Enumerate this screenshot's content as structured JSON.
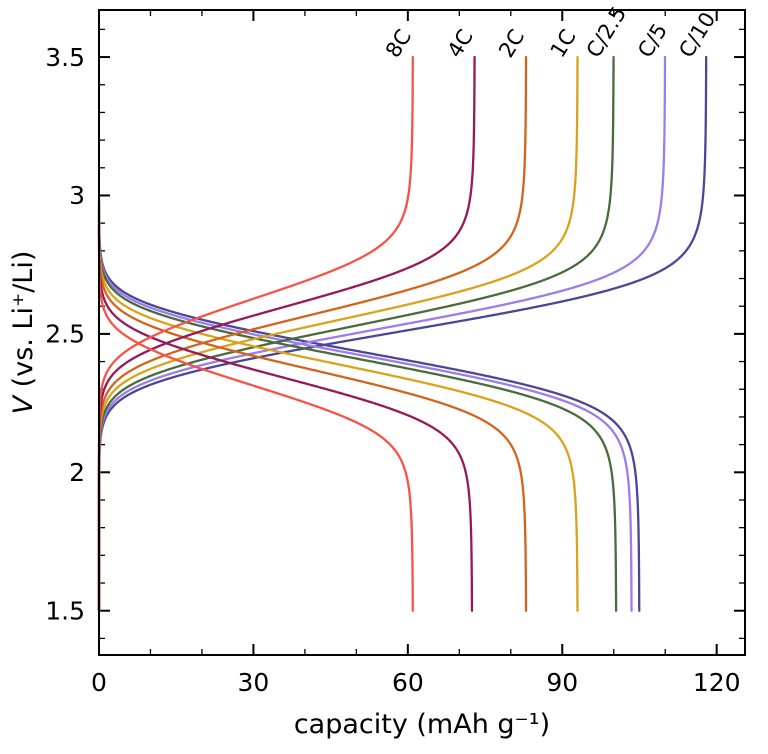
{
  "chart_data": {
    "type": "line",
    "title": "",
    "xlabel": "capacity (mAh g⁻¹)",
    "ylabel": "V (vs. Li⁺/Li)",
    "xlim": [
      0,
      125.5
    ],
    "ylim": [
      1.34,
      3.67
    ],
    "grid": false,
    "frame": true,
    "legend_style": "rotated-inline-labels-at-curve-tops",
    "x_ticks": {
      "major": [
        0,
        30,
        60,
        90,
        120
      ],
      "labels": [
        "0",
        "30",
        "60",
        "90",
        "120"
      ],
      "minor_step": 10
    },
    "y_ticks": {
      "major": [
        1.5,
        2.0,
        2.5,
        3.0,
        3.5
      ],
      "labels": [
        "1.5",
        "2",
        "2.5",
        "3",
        "3.5"
      ],
      "minor_step": 0.1
    },
    "series": [
      {
        "name": "8C",
        "color": "#f75349",
        "charge_capacity_mAh_g": 61,
        "discharge_capacity_mAh_g": 61,
        "charge_plateau_V": 2.63,
        "discharge_plateau_V": 2.31
      },
      {
        "name": "4C",
        "color": "#981858",
        "charge_capacity_mAh_g": 73,
        "discharge_capacity_mAh_g": 72.5,
        "charge_plateau_V": 2.6,
        "discharge_plateau_V": 2.34
      },
      {
        "name": "2C",
        "color": "#d4641c",
        "charge_capacity_mAh_g": 83,
        "discharge_capacity_mAh_g": 83,
        "charge_plateau_V": 2.57,
        "discharge_plateau_V": 2.37
      },
      {
        "name": "1C",
        "color": "#d9a31b",
        "charge_capacity_mAh_g": 93,
        "discharge_capacity_mAh_g": 93,
        "charge_plateau_V": 2.55,
        "discharge_plateau_V": 2.39
      },
      {
        "name": "C/2.5",
        "color": "#486c3e",
        "charge_capacity_mAh_g": 100,
        "discharge_capacity_mAh_g": 100.5,
        "charge_plateau_V": 2.53,
        "discharge_plateau_V": 2.41
      },
      {
        "name": "C/5",
        "color": "#9d7ceb",
        "charge_capacity_mAh_g": 110,
        "discharge_capacity_mAh_g": 103.5,
        "charge_plateau_V": 2.52,
        "discharge_plateau_V": 2.42
      },
      {
        "name": "C/10",
        "color": "#4c4794",
        "charge_capacity_mAh_g": 118,
        "discharge_capacity_mAh_g": 105,
        "charge_plateau_V": 2.51,
        "discharge_plateau_V": 2.43
      }
    ],
    "curve_model": {
      "v_min": 1.5,
      "v_max": 3.5,
      "charge_slope": 0.09,
      "charge_tail": 0.1,
      "discharge_slope": 0.085,
      "discharge_tail": 0.095,
      "knee_cubic": 0.008
    }
  }
}
